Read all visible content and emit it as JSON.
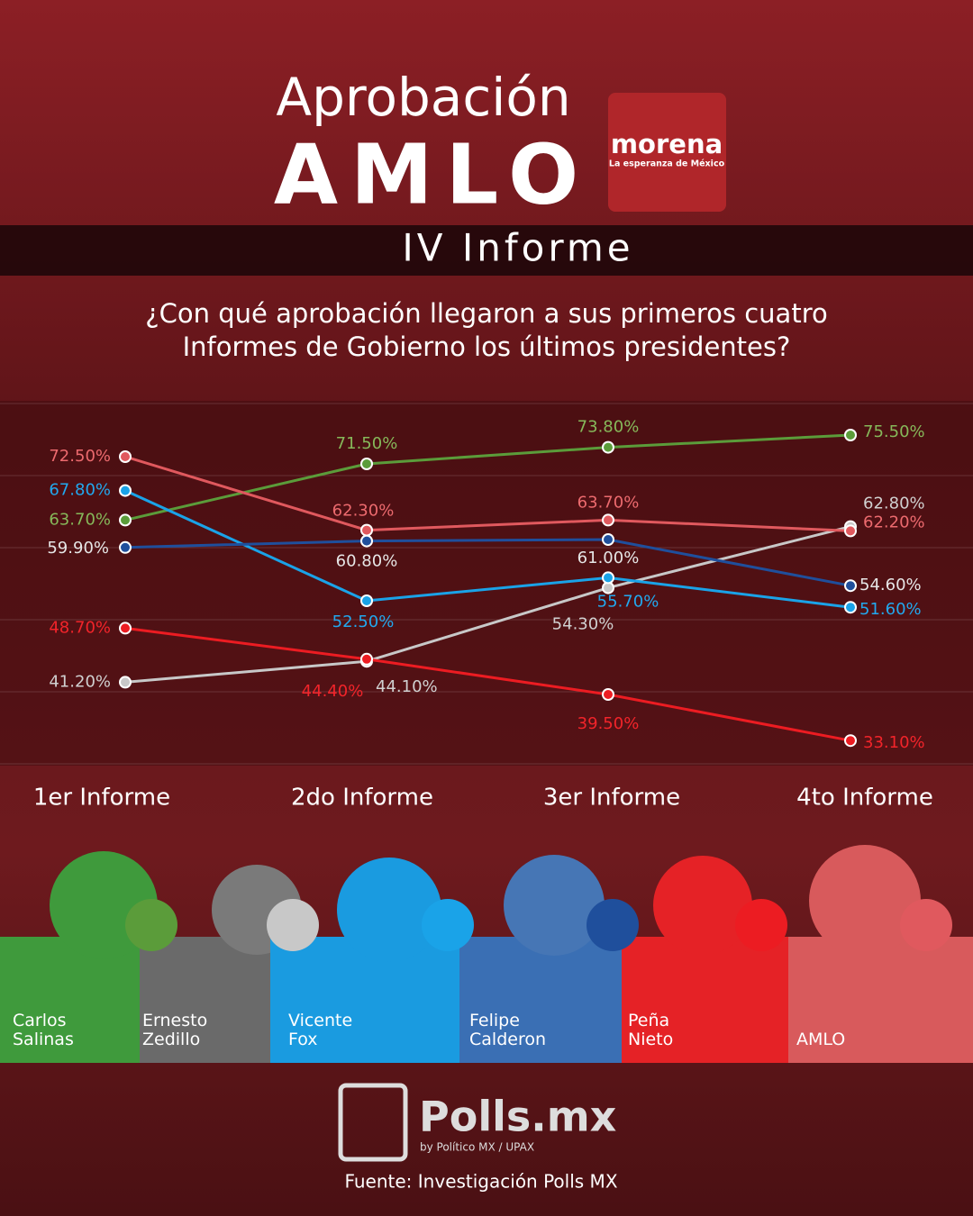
{
  "header": {
    "title": "Aprobación",
    "subject": "AMLO",
    "logo": "morena",
    "logo_tagline": "La esperanza de México",
    "banner": "IV Informe"
  },
  "chart_data": {
    "type": "line",
    "title": "¿Con qué aprobación llegaron a sus primeros cuatro Informes de Gobierno los últimos presidentes?",
    "categories": [
      "1er Informe",
      "2do Informe",
      "3er Informe",
      "4to Informe"
    ],
    "ylim": [
      30,
      80
    ],
    "series": [
      {
        "name": "Carlos Salinas",
        "color": "#5b9c3a",
        "label_color": "#86b85a",
        "values": [
          63.7,
          71.5,
          73.8,
          75.5
        ],
        "value_labels": [
          "63.70%",
          "71.50%",
          "73.80%",
          "75.50%"
        ]
      },
      {
        "name": "Ernesto Zedillo",
        "color": "#c8c8c8",
        "label_color": "#d0d0d0",
        "values": [
          41.2,
          44.1,
          54.3,
          62.8
        ],
        "value_labels": [
          "41.20%",
          "44.10%",
          "54.30%",
          "62.80%"
        ]
      },
      {
        "name": "Vicente Fox",
        "color": "#1aa3e8",
        "label_color": "#22a8ee",
        "values": [
          67.8,
          52.5,
          55.7,
          51.6
        ],
        "value_labels": [
          "67.80%",
          "52.50%",
          "55.70%",
          "51.60%"
        ]
      },
      {
        "name": "Felipe Calderon",
        "color": "#1f4f9c",
        "label_color": "#e6e6e6",
        "values": [
          59.9,
          60.8,
          61.0,
          54.6
        ],
        "value_labels": [
          "59.90%",
          "60.80%",
          "61.00%",
          "54.60%"
        ]
      },
      {
        "name": "Peña Nieto",
        "color": "#ec1c22",
        "label_color": "#f2242a",
        "values": [
          48.7,
          44.4,
          39.5,
          33.1
        ],
        "value_labels": [
          "48.70%",
          "44.40%",
          "39.50%",
          "33.10%"
        ]
      },
      {
        "name": "AMLO",
        "color": "#e0595e",
        "label_color": "#ec6a6e",
        "values": [
          72.5,
          62.3,
          63.7,
          62.2
        ],
        "value_labels": [
          "72.50%",
          "62.30%",
          "63.70%",
          "62.20%"
        ]
      }
    ]
  },
  "footer": {
    "brand": "Polls.mx",
    "byline": "by Político MX / UPAX",
    "source": "Fuente: Investigación Polls MX"
  }
}
